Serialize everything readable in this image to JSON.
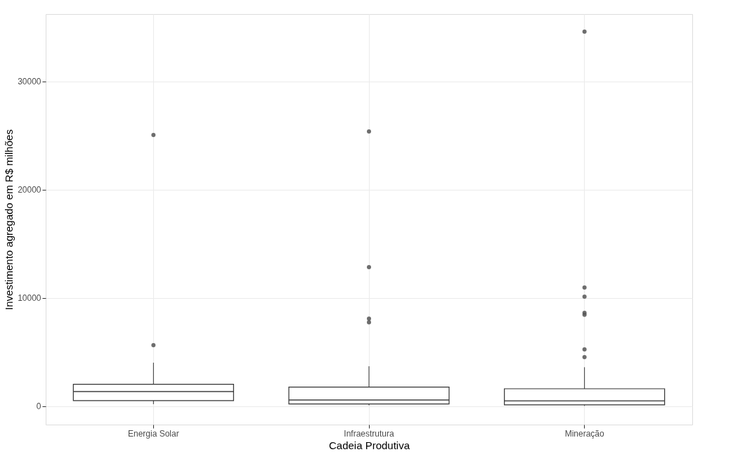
{
  "chart_data": {
    "type": "box",
    "xlabel": "Cadeia Produtiva",
    "ylabel": "Investimento agregado em R$ milhões",
    "categories": [
      "Energia Solar",
      "Infraestrutura",
      "Mineração"
    ],
    "boxes": [
      {
        "low": 200,
        "q1": 520,
        "median": 1360,
        "q3": 2030,
        "high": 4030,
        "outliers": [
          5650,
          25060
        ]
      },
      {
        "low": 90,
        "q1": 220,
        "median": 580,
        "q3": 1770,
        "high": 3700,
        "outliers": [
          7750,
          8100,
          12860,
          25390
        ]
      },
      {
        "low": 40,
        "q1": 130,
        "median": 500,
        "q3": 1620,
        "high": 3610,
        "outliers": [
          4550,
          5260,
          8460,
          8640,
          10130,
          10970,
          34610
        ]
      }
    ],
    "color": "#333333",
    "ylim": [
      -1690,
      36230
    ],
    "yticks": [
      0,
      10000,
      20000,
      30000
    ],
    "grid": true
  }
}
